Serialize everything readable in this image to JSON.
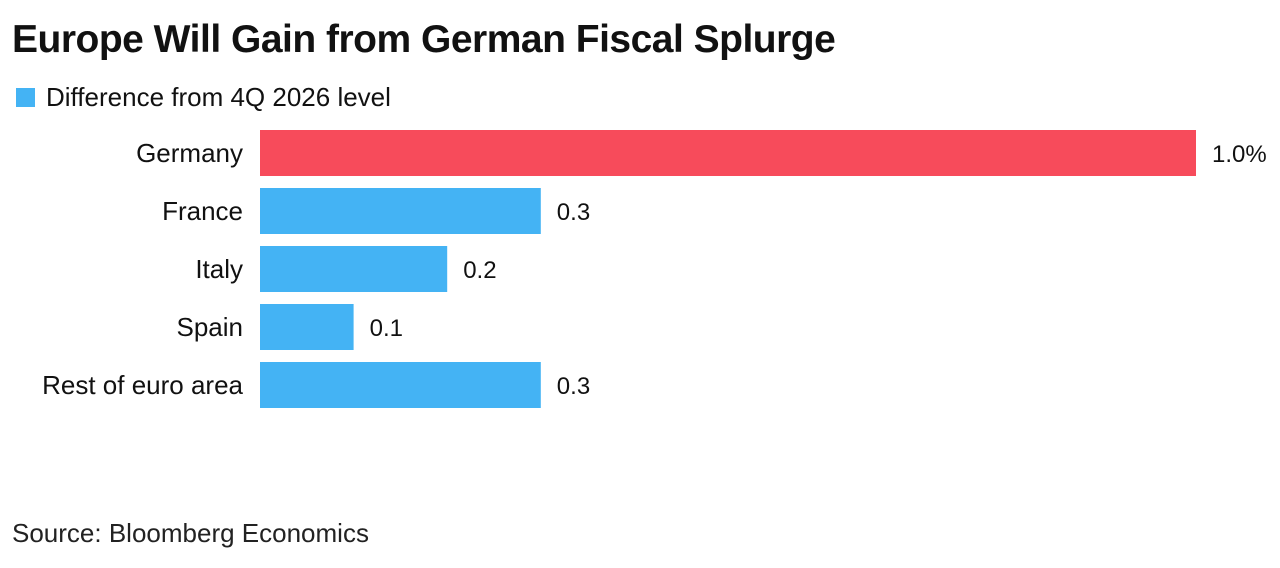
{
  "chart_data": {
    "type": "bar",
    "orientation": "horizontal",
    "title": "Europe Will Gain from German Fiscal Splurge",
    "legend": {
      "label": "Difference from 4Q 2026 level",
      "color": "#44b3f4",
      "placement": "top-left"
    },
    "categories": [
      "Germany",
      "France",
      "Italy",
      "Spain",
      "Rest of euro area"
    ],
    "series": [
      {
        "name": "Difference from 4Q 2026 level",
        "values": [
          1.0,
          0.3,
          0.2,
          0.1,
          0.3
        ]
      }
    ],
    "value_labels": [
      "1.0%",
      "0.3",
      "0.2",
      "0.1",
      "0.3"
    ],
    "bar_colors": [
      "#f74b5b",
      "#44b3f4",
      "#44b3f4",
      "#44b3f4",
      "#44b3f4"
    ],
    "xlim": [
      0,
      1.0
    ],
    "grid": false,
    "source": "Source: Bloomberg Economics"
  }
}
